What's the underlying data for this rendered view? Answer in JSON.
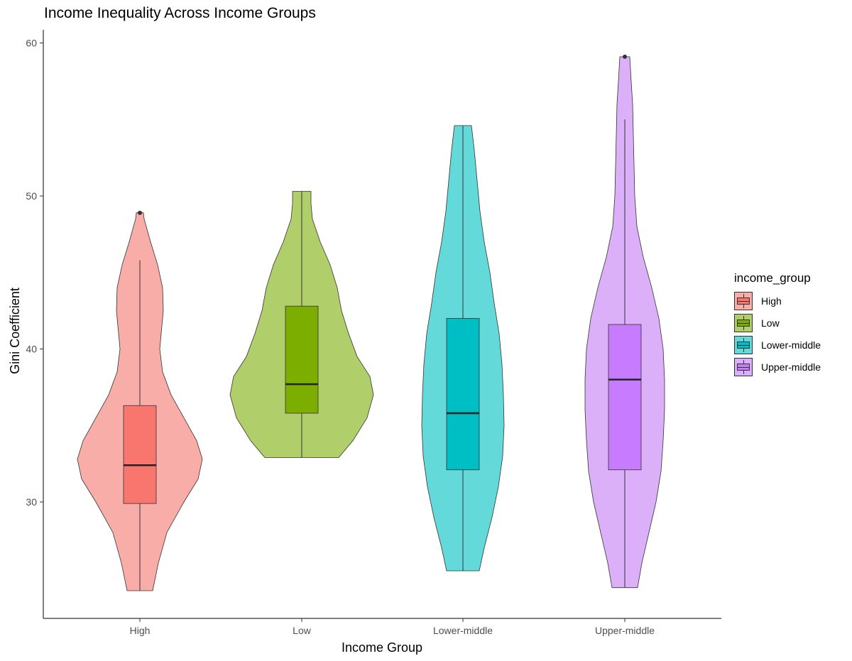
{
  "chart_data": {
    "type": "violin",
    "title": "Income Inequality Across Income Groups",
    "xlabel": "Income Group",
    "ylabel": "Gini Coefficient",
    "categories": [
      "High",
      "Low",
      "Lower-middle",
      "Upper-middle"
    ],
    "y_ticks": [
      30,
      40,
      50,
      60
    ],
    "ylim": [
      22.3,
      60.9
    ],
    "grid": false,
    "legend": {
      "title": "income_group",
      "position": "right",
      "entries": [
        "High",
        "Low",
        "Lower-middle",
        "Upper-middle"
      ]
    },
    "series": [
      {
        "name": "High",
        "violin_fill": "#F8ADA8",
        "box_fill": "#F8766D",
        "min": 24.2,
        "q1": 29.9,
        "median": 32.4,
        "q3": 36.3,
        "whisker_low": 24.2,
        "whisker_high": 45.8,
        "outliers": [
          48.9
        ],
        "violin_max": 48.9,
        "density_profile": [
          [
            24.2,
            18
          ],
          [
            26,
            26
          ],
          [
            28,
            38
          ],
          [
            30,
            62
          ],
          [
            31.5,
            82
          ],
          [
            32.8,
            88
          ],
          [
            34,
            80
          ],
          [
            35.5,
            62
          ],
          [
            37,
            44
          ],
          [
            38.5,
            32
          ],
          [
            40,
            28
          ],
          [
            41,
            30
          ],
          [
            42.5,
            33
          ],
          [
            44,
            32
          ],
          [
            45.5,
            25
          ],
          [
            47,
            15
          ],
          [
            48.5,
            6
          ],
          [
            48.9,
            5
          ]
        ]
      },
      {
        "name": "Low",
        "violin_fill": "#B0CF6A",
        "box_fill": "#7CAE00",
        "min": 32.9,
        "q1": 35.8,
        "median": 37.7,
        "q3": 42.8,
        "whisker_low": 32.9,
        "whisker_high": 50.3,
        "outliers": [],
        "violin_max": 50.3,
        "density_profile": [
          [
            32.9,
            52
          ],
          [
            34,
            72
          ],
          [
            35.5,
            92
          ],
          [
            37,
            101
          ],
          [
            38.2,
            96
          ],
          [
            39.5,
            78
          ],
          [
            41,
            66
          ],
          [
            42.5,
            56
          ],
          [
            44,
            50
          ],
          [
            45.5,
            40
          ],
          [
            47,
            26
          ],
          [
            48.5,
            15
          ],
          [
            49.5,
            13
          ],
          [
            50.3,
            13
          ]
        ]
      },
      {
        "name": "Lower-middle",
        "violin_fill": "#64D9DA",
        "box_fill": "#00BFC4",
        "min": 25.5,
        "q1": 32.1,
        "median": 35.8,
        "q3": 42.0,
        "whisker_low": 25.5,
        "whisker_high": 54.6,
        "outliers": [],
        "violin_max": 54.6,
        "density_profile": [
          [
            25.5,
            23
          ],
          [
            27,
            30
          ],
          [
            29,
            41
          ],
          [
            31,
            50
          ],
          [
            33,
            56
          ],
          [
            35,
            58
          ],
          [
            37,
            57
          ],
          [
            39,
            55
          ],
          [
            41,
            51
          ],
          [
            43,
            44
          ],
          [
            45,
            38
          ],
          [
            47,
            30
          ],
          [
            49,
            24
          ],
          [
            51,
            20
          ],
          [
            53,
            16
          ],
          [
            54.6,
            12
          ]
        ]
      },
      {
        "name": "Upper-middle",
        "violin_fill": "#DCAFF9",
        "box_fill": "#C77CFF",
        "min": 24.4,
        "q1": 32.1,
        "median": 38.0,
        "q3": 41.6,
        "whisker_low": 24.4,
        "whisker_high": 55.0,
        "outliers": [
          59.1
        ],
        "violin_max": 59.1,
        "density_profile": [
          [
            24.4,
            18
          ],
          [
            26,
            24
          ],
          [
            28,
            34
          ],
          [
            30,
            44
          ],
          [
            32,
            51
          ],
          [
            34,
            54
          ],
          [
            36,
            56
          ],
          [
            38,
            56
          ],
          [
            40,
            54
          ],
          [
            42,
            48
          ],
          [
            44,
            38
          ],
          [
            46,
            26
          ],
          [
            48,
            17
          ],
          [
            50,
            14
          ],
          [
            52,
            13
          ],
          [
            54,
            12
          ],
          [
            56,
            11
          ],
          [
            57.5,
            9
          ],
          [
            59.1,
            7
          ]
        ]
      }
    ]
  }
}
